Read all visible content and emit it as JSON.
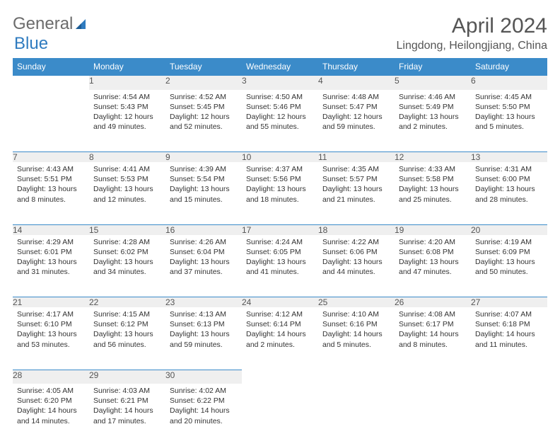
{
  "logo": {
    "text1": "General",
    "text2": "Blue",
    "color1": "#6c6c6c",
    "color2": "#2f7bbf"
  },
  "header": {
    "month_title": "April 2024",
    "location": "Lingdong, Heilongjiang, China"
  },
  "style": {
    "header_bg": "#3b8bc9",
    "header_text": "#ffffff",
    "daynum_bg": "#efefef",
    "daynum_border": "#3b8bc9",
    "text_color": "#333333",
    "title_color": "#555555",
    "fontsize_title": 30,
    "fontsize_location": 16,
    "fontsize_header": 12,
    "fontsize_body": 10.5
  },
  "weekdays": [
    "Sunday",
    "Monday",
    "Tuesday",
    "Wednesday",
    "Thursday",
    "Friday",
    "Saturday"
  ],
  "weeks": [
    [
      null,
      {
        "n": "1",
        "sr": "4:54 AM",
        "ss": "5:43 PM",
        "dl": "12 hours and 49 minutes."
      },
      {
        "n": "2",
        "sr": "4:52 AM",
        "ss": "5:45 PM",
        "dl": "12 hours and 52 minutes."
      },
      {
        "n": "3",
        "sr": "4:50 AM",
        "ss": "5:46 PM",
        "dl": "12 hours and 55 minutes."
      },
      {
        "n": "4",
        "sr": "4:48 AM",
        "ss": "5:47 PM",
        "dl": "12 hours and 59 minutes."
      },
      {
        "n": "5",
        "sr": "4:46 AM",
        "ss": "5:49 PM",
        "dl": "13 hours and 2 minutes."
      },
      {
        "n": "6",
        "sr": "4:45 AM",
        "ss": "5:50 PM",
        "dl": "13 hours and 5 minutes."
      }
    ],
    [
      {
        "n": "7",
        "sr": "4:43 AM",
        "ss": "5:51 PM",
        "dl": "13 hours and 8 minutes."
      },
      {
        "n": "8",
        "sr": "4:41 AM",
        "ss": "5:53 PM",
        "dl": "13 hours and 12 minutes."
      },
      {
        "n": "9",
        "sr": "4:39 AM",
        "ss": "5:54 PM",
        "dl": "13 hours and 15 minutes."
      },
      {
        "n": "10",
        "sr": "4:37 AM",
        "ss": "5:56 PM",
        "dl": "13 hours and 18 minutes."
      },
      {
        "n": "11",
        "sr": "4:35 AM",
        "ss": "5:57 PM",
        "dl": "13 hours and 21 minutes."
      },
      {
        "n": "12",
        "sr": "4:33 AM",
        "ss": "5:58 PM",
        "dl": "13 hours and 25 minutes."
      },
      {
        "n": "13",
        "sr": "4:31 AM",
        "ss": "6:00 PM",
        "dl": "13 hours and 28 minutes."
      }
    ],
    [
      {
        "n": "14",
        "sr": "4:29 AM",
        "ss": "6:01 PM",
        "dl": "13 hours and 31 minutes."
      },
      {
        "n": "15",
        "sr": "4:28 AM",
        "ss": "6:02 PM",
        "dl": "13 hours and 34 minutes."
      },
      {
        "n": "16",
        "sr": "4:26 AM",
        "ss": "6:04 PM",
        "dl": "13 hours and 37 minutes."
      },
      {
        "n": "17",
        "sr": "4:24 AM",
        "ss": "6:05 PM",
        "dl": "13 hours and 41 minutes."
      },
      {
        "n": "18",
        "sr": "4:22 AM",
        "ss": "6:06 PM",
        "dl": "13 hours and 44 minutes."
      },
      {
        "n": "19",
        "sr": "4:20 AM",
        "ss": "6:08 PM",
        "dl": "13 hours and 47 minutes."
      },
      {
        "n": "20",
        "sr": "4:19 AM",
        "ss": "6:09 PM",
        "dl": "13 hours and 50 minutes."
      }
    ],
    [
      {
        "n": "21",
        "sr": "4:17 AM",
        "ss": "6:10 PM",
        "dl": "13 hours and 53 minutes."
      },
      {
        "n": "22",
        "sr": "4:15 AM",
        "ss": "6:12 PM",
        "dl": "13 hours and 56 minutes."
      },
      {
        "n": "23",
        "sr": "4:13 AM",
        "ss": "6:13 PM",
        "dl": "13 hours and 59 minutes."
      },
      {
        "n": "24",
        "sr": "4:12 AM",
        "ss": "6:14 PM",
        "dl": "14 hours and 2 minutes."
      },
      {
        "n": "25",
        "sr": "4:10 AM",
        "ss": "6:16 PM",
        "dl": "14 hours and 5 minutes."
      },
      {
        "n": "26",
        "sr": "4:08 AM",
        "ss": "6:17 PM",
        "dl": "14 hours and 8 minutes."
      },
      {
        "n": "27",
        "sr": "4:07 AM",
        "ss": "6:18 PM",
        "dl": "14 hours and 11 minutes."
      }
    ],
    [
      {
        "n": "28",
        "sr": "4:05 AM",
        "ss": "6:20 PM",
        "dl": "14 hours and 14 minutes."
      },
      {
        "n": "29",
        "sr": "4:03 AM",
        "ss": "6:21 PM",
        "dl": "14 hours and 17 minutes."
      },
      {
        "n": "30",
        "sr": "4:02 AM",
        "ss": "6:22 PM",
        "dl": "14 hours and 20 minutes."
      },
      null,
      null,
      null,
      null
    ]
  ],
  "labels": {
    "sunrise": "Sunrise:",
    "sunset": "Sunset:",
    "daylight": "Daylight:"
  }
}
